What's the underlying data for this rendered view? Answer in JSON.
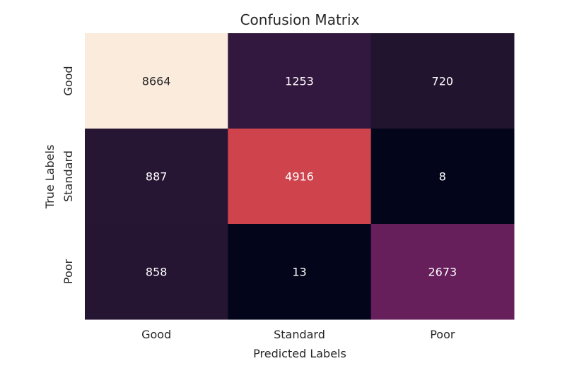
{
  "chart_data": {
    "type": "heatmap",
    "title": "Confusion Matrix",
    "xlabel": "Predicted Labels",
    "ylabel": "True Labels",
    "x_categories": [
      "Good",
      "Standard",
      "Poor"
    ],
    "y_categories": [
      "Good",
      "Standard",
      "Poor"
    ],
    "values": [
      [
        8664,
        1253,
        720
      ],
      [
        887,
        4916,
        8
      ],
      [
        858,
        13,
        2673
      ]
    ],
    "colormap": "rocket",
    "colorbar": false,
    "grid": false
  }
}
